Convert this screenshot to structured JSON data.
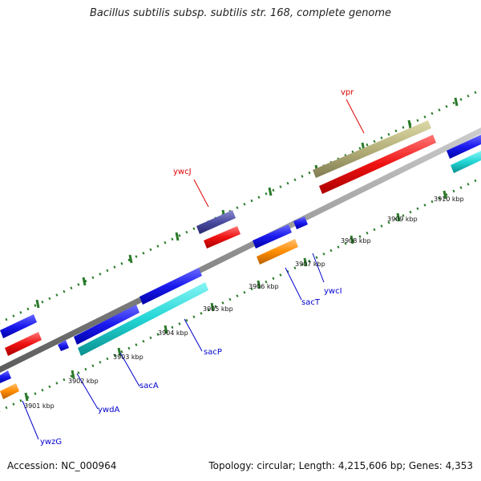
{
  "title": "Bacillus subtilis subsp. subtilis str. 168, complete genome",
  "footer": {
    "accession": "Accession: NC_000964",
    "summary": "Topology: circular; Length: 4,215,606 bp; Genes: 4,353"
  },
  "ticks": [
    "3901 kbp",
    "3902 kbp",
    "3903 kbp",
    "3904 kbp",
    "3905 kbp",
    "3906 kbp",
    "3907 kbp",
    "3908 kbp",
    "3909 kbp",
    "3910 kbp"
  ],
  "genes_top": [
    "ywcJ",
    "vpr"
  ],
  "genes_bottom": [
    "ywzG",
    "ywdA",
    "sacA",
    "sacP",
    "sacT",
    "ywcI"
  ],
  "colors": {
    "cds_blue": "#1a1aee",
    "gene_red": "#ee1111",
    "cyan": "#22d5d5",
    "orange": "#ff8c00",
    "olive": "#b5b07a",
    "slate": "#4b4ba0",
    "tick_green": "#2a7a2a"
  }
}
